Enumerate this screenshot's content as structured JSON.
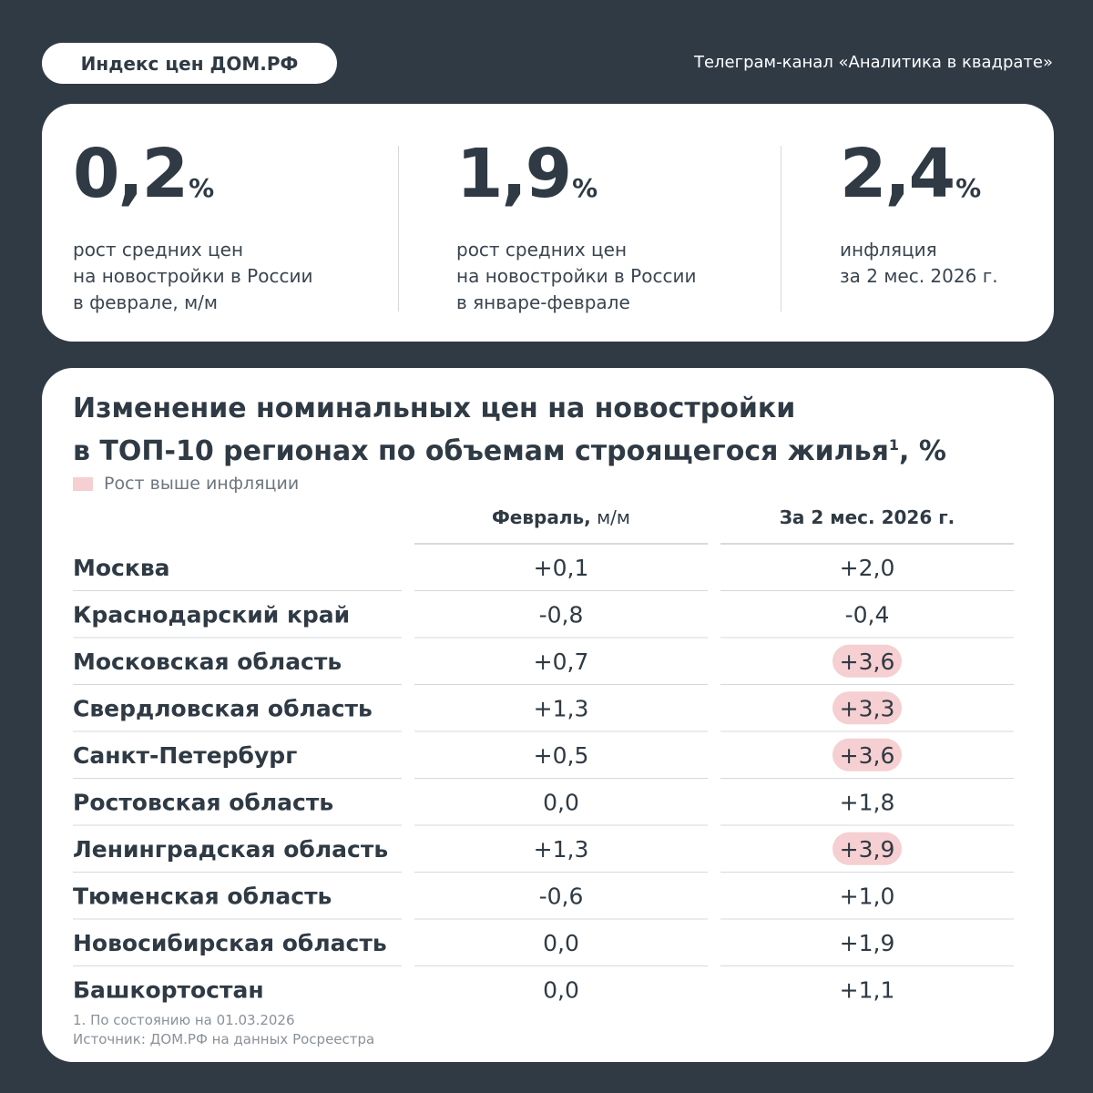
{
  "header": {
    "badge": "Индекс цен ДОМ.РФ",
    "channel": "Телеграм-канал «Аналитика в квадрате»"
  },
  "stats": [
    {
      "value": "0,2",
      "unit": "%",
      "description": "рост средних цен\nна новостройки в России\nв феврале, м/м"
    },
    {
      "value": "1,9",
      "unit": "%",
      "description": "рост средних цен\nна новостройки в России\nв январе-феврале"
    },
    {
      "value": "2,4",
      "unit": "%",
      "description": "инфляция\nза 2 мес. 2026 г."
    }
  ],
  "chart_data": {
    "type": "table",
    "title_line1": "Изменение номинальных цен на новостройки",
    "title_line2": "в ТОП-10 регионах по объемам строящегося жилья",
    "title_footnote_mark": "1",
    "title_unit": ", %",
    "legend": "Рост выше инфляции",
    "columns": [
      {
        "label": "Февраль,",
        "sublabel": " м/м"
      },
      {
        "label": "За 2 мес. 2026 г.",
        "sublabel": ""
      }
    ],
    "inflation_threshold": 2.4,
    "rows": [
      {
        "region": "Москва",
        "feb": "+0,1",
        "two_months": "+2,0",
        "feb_value": 0.1,
        "two_months_value": 2.0,
        "above_inflation": false
      },
      {
        "region": "Краснодарский край",
        "feb": "-0,8",
        "two_months": "-0,4",
        "feb_value": -0.8,
        "two_months_value": -0.4,
        "above_inflation": false
      },
      {
        "region": "Московская область",
        "feb": "+0,7",
        "two_months": "+3,6",
        "feb_value": 0.7,
        "two_months_value": 3.6,
        "above_inflation": true
      },
      {
        "region": "Свердловская область",
        "feb": "+1,3",
        "two_months": "+3,3",
        "feb_value": 1.3,
        "two_months_value": 3.3,
        "above_inflation": true
      },
      {
        "region": "Санкт-Петербург",
        "feb": "+0,5",
        "two_months": "+3,6",
        "feb_value": 0.5,
        "two_months_value": 3.6,
        "above_inflation": true
      },
      {
        "region": "Ростовская область",
        "feb": "0,0",
        "two_months": "+1,8",
        "feb_value": 0.0,
        "two_months_value": 1.8,
        "above_inflation": false
      },
      {
        "region": "Ленинградская область",
        "feb": "+1,3",
        "two_months": "+3,9",
        "feb_value": 1.3,
        "two_months_value": 3.9,
        "above_inflation": true
      },
      {
        "region": "Тюменская область",
        "feb": "-0,6",
        "two_months": "+1,0",
        "feb_value": -0.6,
        "two_months_value": 1.0,
        "above_inflation": false
      },
      {
        "region": "Новосибирская область",
        "feb": "0,0",
        "two_months": "+1,9",
        "feb_value": 0.0,
        "two_months_value": 1.9,
        "above_inflation": false
      },
      {
        "region": "Башкортостан",
        "feb": "0,0",
        "two_months": "+1,1",
        "feb_value": 0.0,
        "two_months_value": 1.1,
        "above_inflation": false
      }
    ],
    "footnote": "1.  По состоянию на 01.03.2026",
    "source": "Источник: ДОМ.РФ на данных Росреестра"
  },
  "colors": {
    "background": "#2f3a44",
    "card": "#ffffff",
    "text": "#2f3a44",
    "highlight": "#f5cfd1",
    "divider": "#d5d9dd"
  }
}
